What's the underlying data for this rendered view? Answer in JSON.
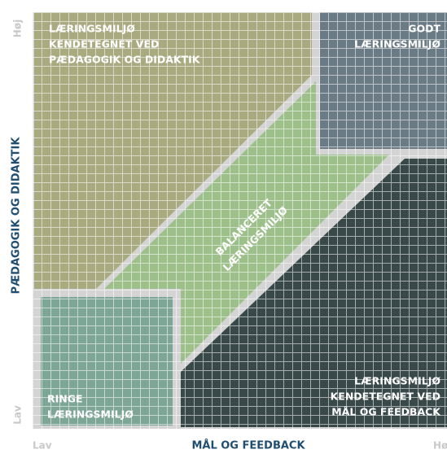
{
  "axes": {
    "y": {
      "label": "PÆDAGOGIK OG DIDAKTIK",
      "high": "Høj",
      "low": "Lav"
    },
    "x": {
      "label": "MÅL OG FEEDBACK",
      "low": "Lav",
      "high": "Høj"
    }
  },
  "regions": [
    {
      "lines": [
        "LÆRINGSMILJØ",
        "KENDETEGNET VED",
        "PÆDAGOGIK OG DIDAKTIK"
      ]
    },
    {
      "lines": [
        "GODT",
        "LÆRINGSMILJØ"
      ]
    },
    {
      "lines": [
        "BALANCERET",
        "LÆRINGSMILJØ"
      ]
    },
    {
      "lines": [
        "RINGE",
        "LÆRINGSMILJØ"
      ]
    },
    {
      "lines": [
        "LÆRINGSMILJØ",
        "KENDETEGNET VED",
        "MÅL OG FEEDBACK"
      ]
    }
  ]
}
